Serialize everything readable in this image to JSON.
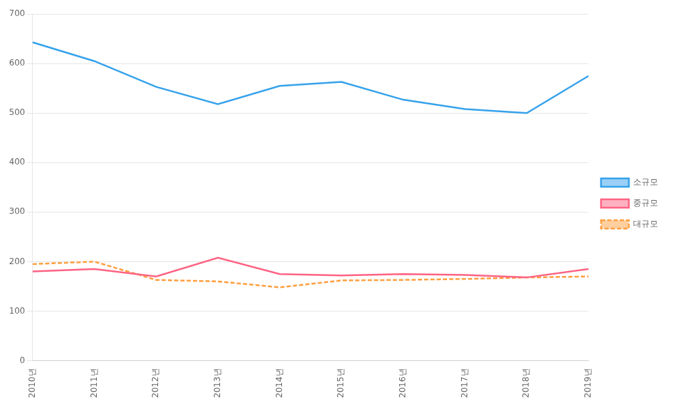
{
  "chart_data": {
    "type": "line",
    "categories": [
      "2010년",
      "2011년",
      "2012년",
      "2013년",
      "2014년",
      "2015년",
      "2016년",
      "2017년",
      "2018년",
      "2019년"
    ],
    "series": [
      {
        "name": "소규모",
        "values": [
          643,
          605,
          553,
          518,
          555,
          563,
          527,
          508,
          500,
          575
        ],
        "line_style": "solid"
      },
      {
        "name": "중규모",
        "values": [
          180,
          185,
          170,
          208,
          175,
          172,
          175,
          173,
          168,
          185
        ],
        "line_style": "solid"
      },
      {
        "name": "대규모",
        "values": [
          195,
          200,
          163,
          160,
          148,
          162,
          163,
          165,
          168,
          170
        ],
        "line_style": "dashed"
      }
    ],
    "ylim": [
      0,
      700
    ],
    "yticks": [
      0,
      100,
      200,
      300,
      400,
      500,
      600,
      700
    ],
    "grid": "y",
    "legend": "right"
  }
}
